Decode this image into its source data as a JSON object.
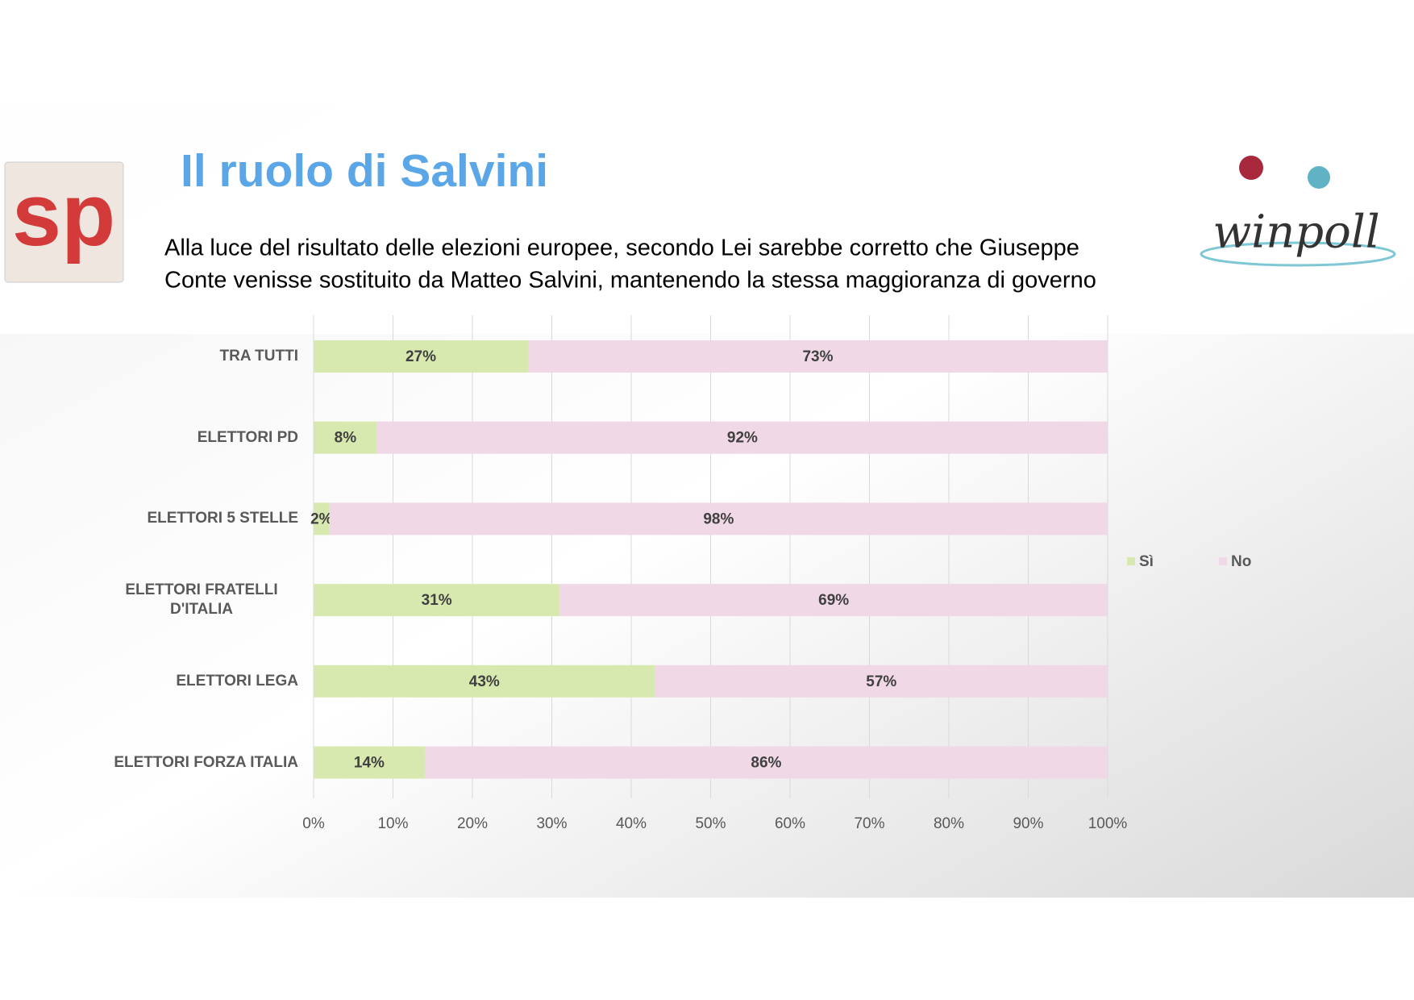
{
  "logos": {
    "left": "sp",
    "right": "winpoll"
  },
  "chart_data": {
    "type": "stacked-bar-horizontal",
    "title": "Il ruolo di Salvini",
    "subtitle": [
      "Alla luce del risultato delle elezioni europee, secondo Lei sarebbe corretto che Giuseppe",
      "Conte venisse sostituito da Matteo Salvini, mantenendo la stessa maggioranza di governo"
    ],
    "categories": [
      "TRA TUTTI",
      "ELETTORI PD",
      "ELETTORI 5 STELLE",
      "ELETTORI FRATELLI D'ITALIA",
      "ELETTORI LEGA",
      "ELETTORI FORZA ITALIA"
    ],
    "series": [
      {
        "name": "Sì",
        "color": "#d8e9b0",
        "values": [
          27,
          8,
          2,
          31,
          43,
          14
        ],
        "value_labels": [
          "27%",
          "8%",
          "2%",
          "31%",
          "43%",
          "14%"
        ]
      },
      {
        "name": "No",
        "color": "#f1d8e6",
        "values": [
          73,
          92,
          98,
          69,
          57,
          86
        ],
        "value_labels": [
          "73%",
          "92%",
          "98%",
          "69%",
          "57%",
          "86%"
        ]
      }
    ],
    "xlim": [
      0,
      100
    ],
    "xticks": [
      {
        "value": 0,
        "label": "0%"
      },
      {
        "value": 10,
        "label": "10%"
      },
      {
        "value": 20,
        "label": "20%"
      },
      {
        "value": 30,
        "label": "30%"
      },
      {
        "value": 40,
        "label": "40%"
      },
      {
        "value": 50,
        "label": "50%"
      },
      {
        "value": 60,
        "label": "60%"
      },
      {
        "value": 70,
        "label": "70%"
      },
      {
        "value": 80,
        "label": "80%"
      },
      {
        "value": 90,
        "label": "90%"
      },
      {
        "value": 100,
        "label": "100%"
      }
    ],
    "grid": true,
    "legend": "right"
  }
}
